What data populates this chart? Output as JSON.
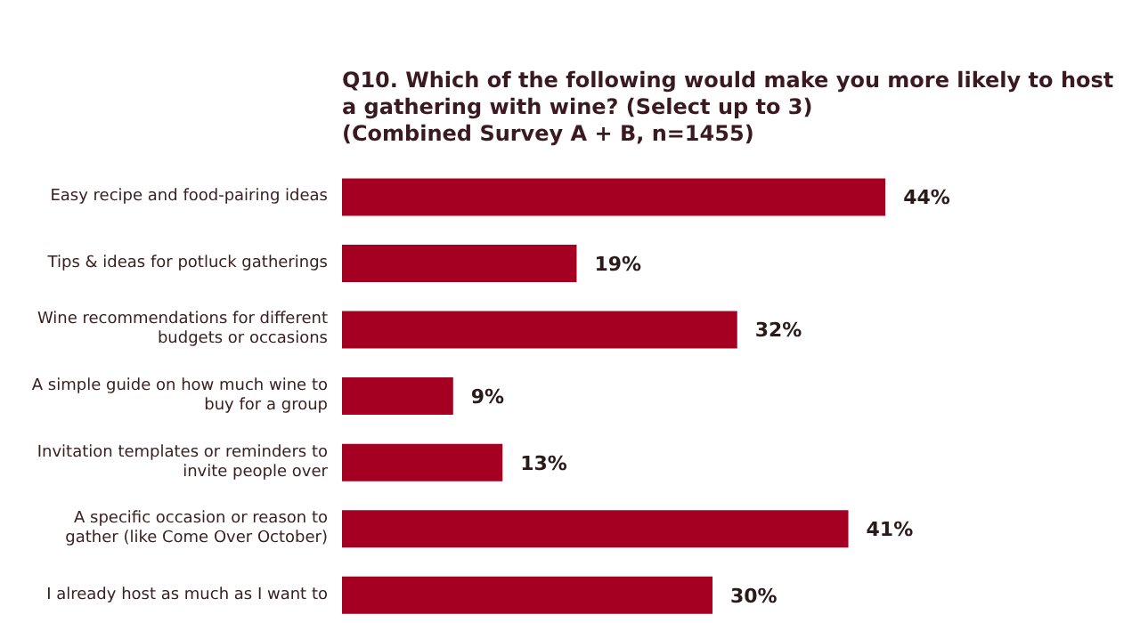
{
  "chart_data": {
    "type": "bar",
    "orientation": "horizontal",
    "title": "Q10. Which of the following would make you more likely to host a gathering with wine? (Select up to 3)\n(Combined Survey A + B, n=1455)",
    "categories": [
      "Easy recipe and food-pairing ideas",
      "Tips & ideas for potluck gatherings",
      "Wine recommendations for different budgets or occasions",
      "A simple guide on how much wine to buy for a group",
      "Invitation templates or reminders to invite people over",
      "A specific occasion or reason to gather (like Come Over October)",
      "I already host as much as I want to"
    ],
    "values": [
      44,
      19,
      32,
      9,
      13,
      41,
      30
    ],
    "value_labels": [
      "44%",
      "19%",
      "32%",
      "9%",
      "13%",
      "41%",
      "30%"
    ],
    "color": "#a50021",
    "tick_labels": "y",
    "legend": false
  }
}
